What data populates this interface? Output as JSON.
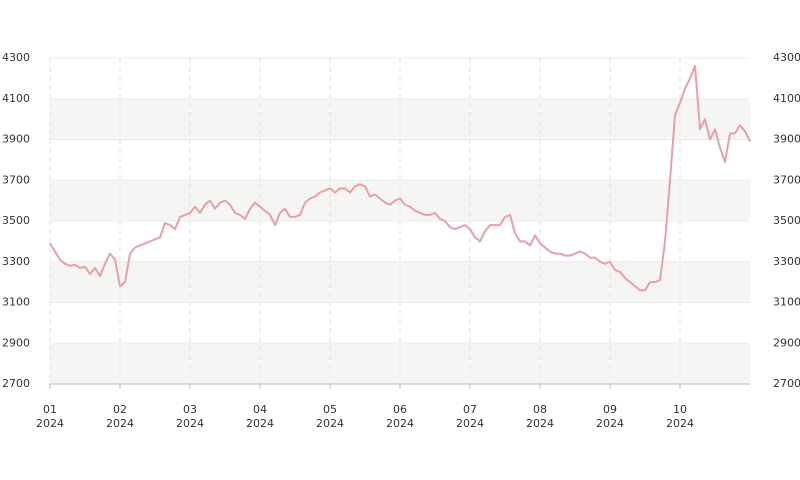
{
  "chart_data": {
    "type": "line",
    "categories": [
      "01\n2024",
      null,
      null,
      null,
      null,
      null,
      null,
      null,
      null,
      null,
      null,
      null,
      null,
      null,
      "02\n2024",
      null,
      null,
      null,
      null,
      null,
      null,
      null,
      null,
      null,
      null,
      null,
      null,
      null,
      "03\n2024",
      null,
      null,
      null,
      null,
      null,
      null,
      null,
      null,
      null,
      null,
      null,
      null,
      null,
      "04\n2024",
      null,
      null,
      null,
      null,
      null,
      null,
      null,
      null,
      null,
      null,
      null,
      null,
      null,
      "05\n2024",
      null,
      null,
      null,
      null,
      null,
      null,
      null,
      null,
      null,
      null,
      null,
      null,
      null,
      "06\n2024",
      null,
      null,
      null,
      null,
      null,
      null,
      null,
      null,
      null,
      null,
      null,
      null,
      null,
      "07\n2024",
      null,
      null,
      null,
      null,
      null,
      null,
      null,
      null,
      null,
      null,
      null,
      null,
      null,
      "08\n2024",
      null,
      null,
      null,
      null,
      null,
      null,
      null,
      null,
      null,
      null,
      null,
      null,
      null,
      "09\n2024",
      null,
      null,
      null,
      null,
      null,
      null,
      null,
      null,
      null,
      null,
      null,
      null,
      null,
      "10\n2024",
      null,
      null,
      null,
      null,
      null,
      null,
      null,
      null,
      null,
      null,
      null,
      null,
      null,
      null
    ],
    "series": [
      {
        "color": "#e8a0a8",
        "values": [
          3390,
          3350,
          3310,
          3290,
          3280,
          3285,
          3270,
          3275,
          3240,
          3270,
          3230,
          3290,
          3340,
          3310,
          3180,
          3200,
          3340,
          3370,
          3380,
          3390,
          3400,
          3410,
          3420,
          3490,
          3480,
          3460,
          3520,
          3530,
          3540,
          3570,
          3540,
          3580,
          3600,
          3560,
          3590,
          3600,
          3580,
          3540,
          3530,
          3510,
          3560,
          3590,
          3570,
          3550,
          3530,
          3480,
          3540,
          3560,
          3520,
          3520,
          3530,
          3590,
          3610,
          3620,
          3640,
          3650,
          3660,
          3640,
          3660,
          3660,
          3640,
          3670,
          3680,
          3670,
          3620,
          3630,
          3610,
          3590,
          3580,
          3600,
          3610,
          3580,
          3570,
          3550,
          3540,
          3530,
          3530,
          3540,
          3510,
          3500,
          3470,
          3460,
          3470,
          3480,
          3460,
          3420,
          3400,
          3450,
          3480,
          3480,
          3480,
          3520,
          3530,
          3440,
          3400,
          3400,
          3380,
          3430,
          3390,
          3370,
          3350,
          3340,
          3340,
          3330,
          3330,
          3340,
          3350,
          3340,
          3320,
          3320,
          3300,
          3290,
          3300,
          3260,
          3250,
          3220,
          3200,
          3180,
          3160,
          3160,
          3200,
          3200,
          3210,
          3400,
          3700,
          4020,
          4080,
          4150,
          4200,
          4260,
          3950,
          4000,
          3900,
          3950,
          3860,
          3790,
          3930,
          3930,
          3970,
          3940,
          3890
        ]
      }
    ],
    "ylim": [
      2700,
      4300
    ],
    "yticks": [
      2700,
      2900,
      3100,
      3300,
      3500,
      3700,
      3900,
      4100,
      4300
    ],
    "y2lim": [
      2700,
      4300
    ],
    "y2ticks": [
      2700,
      2900,
      3100,
      3300,
      3500,
      3700,
      3900,
      4100,
      4300
    ],
    "grid": true
  }
}
